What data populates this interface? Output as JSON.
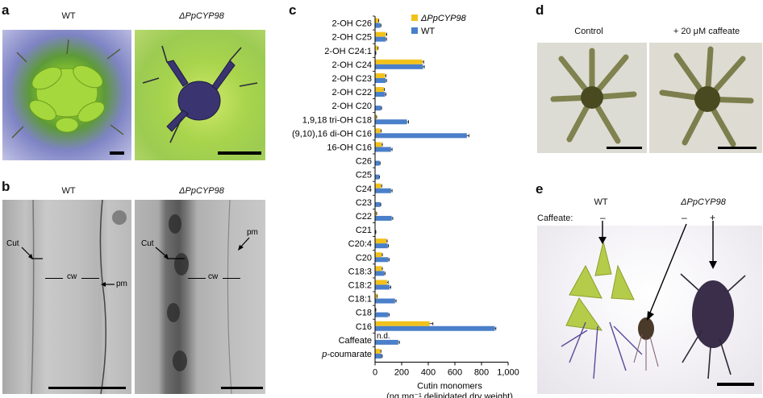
{
  "panels": {
    "a": {
      "label": "a",
      "left_title": "WT",
      "right_title": "ΔPpCYP98"
    },
    "b": {
      "label": "b",
      "left_title": "WT",
      "right_title": "ΔPpCYP98",
      "left_annotations": {
        "cut": "Cut",
        "cw": "cw",
        "pm": "pm"
      },
      "right_annotations": {
        "cut": "Cut",
        "cw": "cw",
        "pm": "pm"
      }
    },
    "c": {
      "label": "c"
    },
    "d": {
      "label": "d",
      "left_title": "Control",
      "right_title": "+ 20 μM caffeate"
    },
    "e": {
      "label": "e",
      "wt_title": "WT",
      "mut_title": "ΔPpCYP98",
      "caffeate_label": "Caffeate:",
      "signs": [
        "–",
        "–",
        "+"
      ]
    }
  },
  "chart_data": {
    "type": "bar",
    "orientation": "horizontal",
    "categories": [
      "2-OH C26",
      "2-OH C25",
      "2-OH C24:1",
      "2-OH C24",
      "2-OH C23",
      "2-OH C22",
      "2-OH C20",
      "1,9,18 tri-OH C18",
      "(9,10),16 di-OH C16",
      "16-OH C16",
      "C26",
      "C25",
      "C24",
      "C23",
      "C22",
      "C21",
      "C20:4",
      "C20",
      "C18:3",
      "C18:2",
      "C18:1",
      "C18",
      "C16",
      "Caffeate",
      "p-coumarate"
    ],
    "series": [
      {
        "name": "ΔPpCYP98",
        "color": "#f2c21b",
        "values": [
          25,
          80,
          20,
          355,
          75,
          65,
          0,
          10,
          40,
          50,
          0,
          0,
          45,
          0,
          10,
          0,
          85,
          50,
          50,
          90,
          15,
          5,
          410,
          0,
          40
        ],
        "errors": [
          3,
          8,
          3,
          10,
          6,
          6,
          0,
          2,
          5,
          5,
          0,
          0,
          5,
          0,
          2,
          0,
          6,
          5,
          5,
          8,
          2,
          1,
          25,
          0,
          4
        ]
      },
      {
        "name": "WT",
        "color": "#4a7fc9",
        "values": [
          40,
          80,
          5,
          360,
          80,
          75,
          45,
          240,
          690,
          120,
          35,
          30,
          120,
          40,
          125,
          5,
          95,
          100,
          70,
          110,
          150,
          100,
          900,
          175,
          50
        ],
        "errors": [
          4,
          6,
          1,
          10,
          6,
          6,
          4,
          12,
          15,
          8,
          3,
          3,
          8,
          3,
          8,
          1,
          6,
          6,
          5,
          8,
          8,
          6,
          8,
          8,
          4
        ]
      }
    ],
    "xlim": [
      0,
      1000
    ],
    "xticks": [
      "0",
      "200",
      "400",
      "600",
      "800",
      "1,000"
    ],
    "xtick_values": [
      0,
      200,
      400,
      600,
      800,
      1000
    ],
    "xlabel_line1": "Cutin monomers",
    "xlabel_line2": "(ng mg⁻¹ delipidated dry weight)",
    "annotation": "n.d.",
    "legend_position": "top-right"
  }
}
